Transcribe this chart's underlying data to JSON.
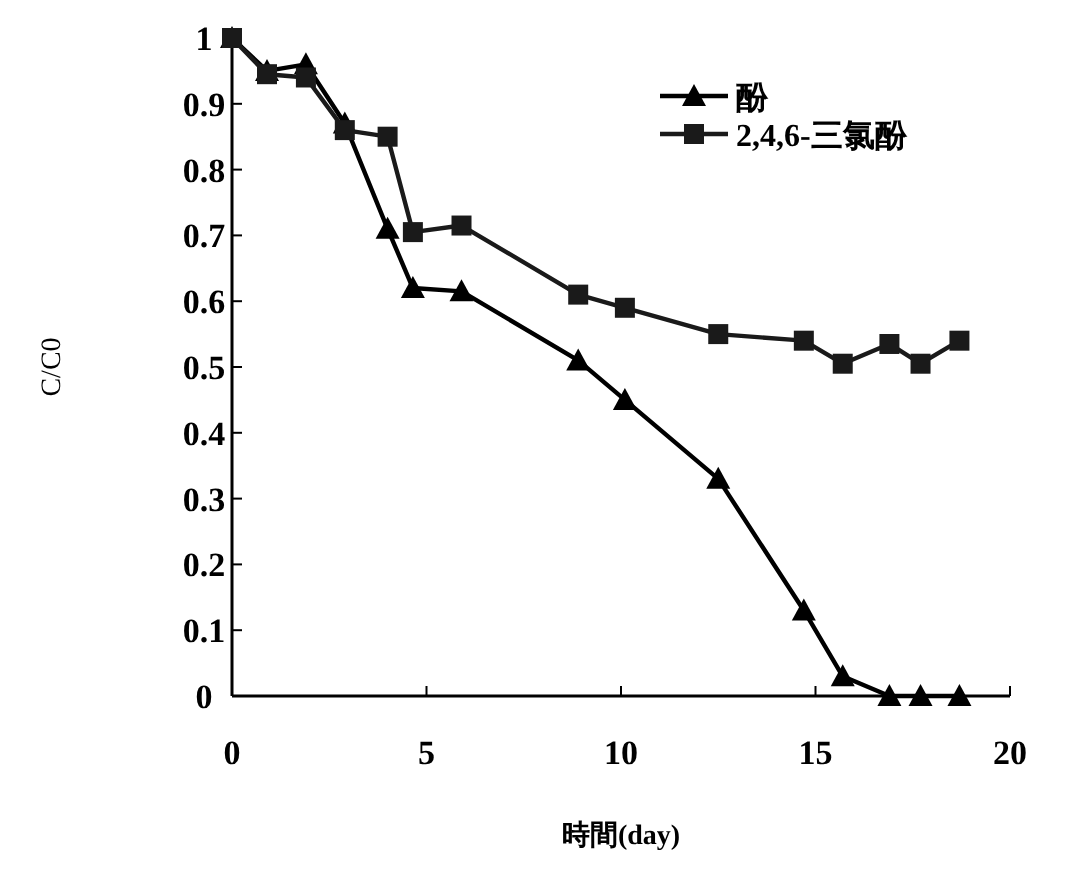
{
  "chart_data": {
    "type": "line",
    "xlabel": "時間(day)",
    "ylabel": "C/C0",
    "x": [
      0,
      0.9,
      1.9,
      2.9,
      4.0,
      4.65,
      5.9,
      8.9,
      10.1,
      12.5,
      14.7,
      15.7,
      16.9,
      17.7,
      18.7
    ],
    "series": [
      {
        "name": "酚",
        "color": "#000000",
        "marker": "triangle",
        "values": [
          1.0,
          0.95,
          0.96,
          0.87,
          0.71,
          0.62,
          0.615,
          0.51,
          0.45,
          0.33,
          0.13,
          0.03,
          0,
          0,
          0
        ]
      },
      {
        "name": "2,4,6-三氯酚",
        "color": "#1a1a1a",
        "marker": "square",
        "values": [
          1.0,
          0.945,
          0.94,
          0.86,
          0.85,
          0.705,
          0.715,
          0.61,
          0.59,
          0.55,
          0.54,
          0.505,
          0.535,
          0.505,
          0.54
        ]
      }
    ],
    "xlim": [
      0,
      20
    ],
    "xticks": [
      0,
      5,
      10,
      15,
      20
    ],
    "ylim": [
      0,
      1
    ],
    "yticks": [
      0,
      0.1,
      0.2,
      0.3,
      0.4,
      0.5,
      0.6,
      0.7,
      0.8,
      0.9,
      1
    ],
    "grid": false,
    "legend": "top right",
    "line_style": "solid"
  }
}
